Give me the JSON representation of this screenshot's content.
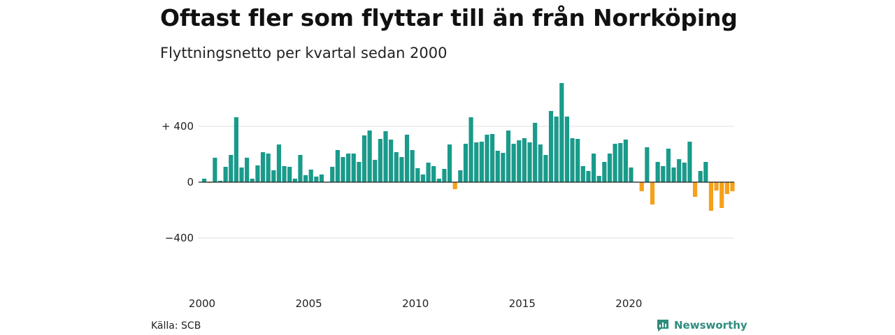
{
  "header": {
    "title": "Oftast fler som flyttar till än från Norrköping",
    "subtitle": "Flyttningsnetto per kvartal sedan 2000"
  },
  "footer": {
    "source": "Källa: SCB",
    "brand": "Newsworthy"
  },
  "colors": {
    "positive": "#1a9a8b",
    "negative": "#f5a11b",
    "grid": "#dddddd",
    "zero_line": "#222222",
    "brand": "#2e8c7d"
  },
  "chart_data": {
    "type": "bar",
    "ylim": [
      -600,
      720
    ],
    "yticks": [
      {
        "value": 400,
        "label": "+ 400"
      },
      {
        "value": 0,
        "label": "0"
      },
      {
        "value": -400,
        "label": "−400"
      }
    ],
    "xticks": [
      {
        "year": 2000,
        "label": "2000"
      },
      {
        "year": 2005,
        "label": "2005"
      },
      {
        "year": 2010,
        "label": "2010"
      },
      {
        "year": 2015,
        "label": "2015"
      },
      {
        "year": 2020,
        "label": "2020"
      }
    ],
    "start_year": 2000,
    "grid": true,
    "values": [
      25,
      -5,
      175,
      10,
      110,
      195,
      465,
      105,
      175,
      25,
      120,
      215,
      205,
      85,
      270,
      115,
      110,
      25,
      195,
      50,
      90,
      40,
      55,
      0,
      110,
      230,
      180,
      205,
      205,
      145,
      335,
      370,
      160,
      310,
      365,
      305,
      215,
      180,
      340,
      230,
      100,
      55,
      140,
      115,
      25,
      95,
      270,
      -50,
      85,
      275,
      465,
      285,
      290,
      340,
      345,
      225,
      210,
      370,
      275,
      300,
      315,
      285,
      425,
      270,
      195,
      510,
      470,
      710,
      470,
      315,
      310,
      115,
      80,
      205,
      45,
      145,
      205,
      275,
      280,
      305,
      105,
      0,
      -65,
      250,
      -160,
      145,
      115,
      240,
      105,
      165,
      140,
      290,
      -105,
      80,
      145,
      -205,
      -60,
      -185,
      -85,
      -65
    ]
  }
}
